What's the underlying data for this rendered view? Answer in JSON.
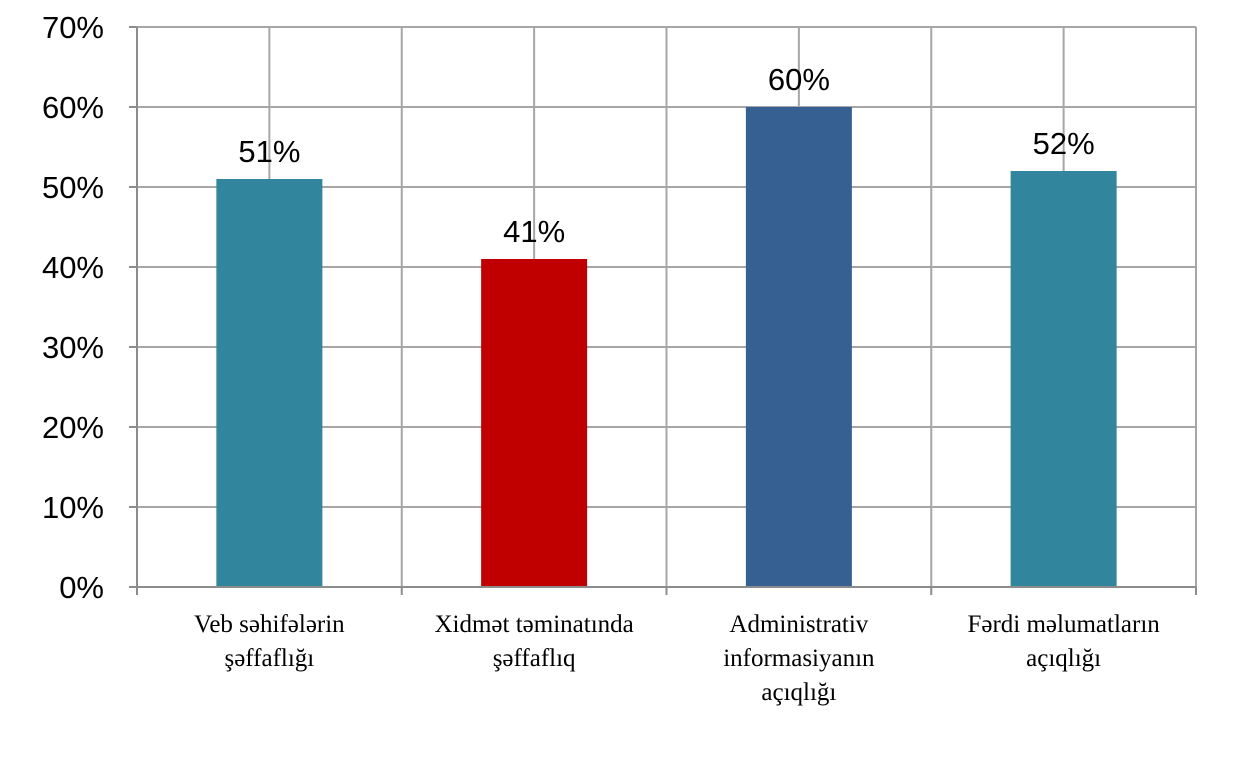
{
  "chart_data": {
    "type": "bar",
    "categories": [
      [
        "Veb səhifələrin",
        "şəffaflığı"
      ],
      [
        "Xidmət təminatında",
        "şəffaflıq"
      ],
      [
        "Administrativ",
        "informasiyanın",
        "açıqlığı"
      ],
      [
        "Fərdi məlumatların",
        "açıqlığı"
      ]
    ],
    "values": [
      51,
      41,
      60,
      52
    ],
    "data_labels": [
      "51%",
      "41%",
      "60%",
      "52%"
    ],
    "colors": [
      "#31859c",
      "#c00000",
      "#366092",
      "#31859c"
    ],
    "ylim": [
      0,
      70
    ],
    "yticks": [
      0,
      10,
      20,
      30,
      40,
      50,
      60,
      70
    ],
    "ytick_labels": [
      "0%",
      "10%",
      "20%",
      "30%",
      "40%",
      "50%",
      "60%",
      "70%"
    ],
    "grid": true
  }
}
